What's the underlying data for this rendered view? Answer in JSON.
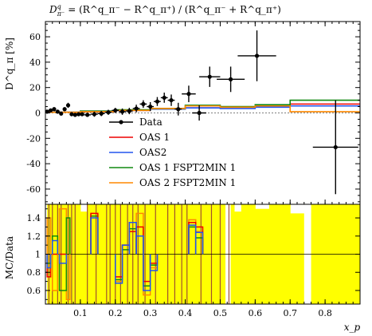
{
  "chart_data": {
    "type": "line",
    "title_html": "D<tspan font-style=\"italic\">q</tspan>",
    "title_parts": {
      "lhs": "D",
      "lhs_sup": "q",
      "lhs_sub": "π⁻",
      "rhs": "= (R^q_π⁻ − R^q_π⁺) / (R^q_π⁻ + R^q_π⁺)"
    },
    "xlabel": "x_p",
    "ylabel": "D^q_π [%]",
    "ratio_ylabel": "MC/Data",
    "xlim": [
      0.0,
      0.9
    ],
    "ylim": [
      -72,
      72
    ],
    "ratio_ylim": [
      0.45,
      1.55
    ],
    "xticks": [
      {
        "v": 0.1,
        "label": "0.1"
      },
      {
        "v": 0.2,
        "label": "0.2"
      },
      {
        "v": 0.3,
        "label": "0.3"
      },
      {
        "v": 0.4,
        "label": "0.4"
      },
      {
        "v": 0.5,
        "label": "0.5"
      },
      {
        "v": 0.6,
        "label": "0.6"
      },
      {
        "v": 0.7,
        "label": "0.7"
      },
      {
        "v": 0.8,
        "label": "0.8"
      }
    ],
    "yticks": [
      {
        "v": 60,
        "label": "60"
      },
      {
        "v": 40,
        "label": "40"
      },
      {
        "v": 20,
        "label": "20"
      },
      {
        "v": 0,
        "label": "0"
      },
      {
        "v": -20,
        "label": "-20"
      },
      {
        "v": -40,
        "label": "-40"
      },
      {
        "v": -60,
        "label": "-60"
      }
    ],
    "ratio_yticks": [
      {
        "v": 1.4,
        "label": "1.4"
      },
      {
        "v": 1.2,
        "label": "1.2"
      },
      {
        "v": 1.0,
        "label": "1"
      },
      {
        "v": 0.8,
        "label": "0.8"
      },
      {
        "v": 0.6,
        "label": "0.6"
      }
    ],
    "legend": {
      "position": "center-left",
      "entries": [
        {
          "name": "Data",
          "color": "#000000",
          "kind": "data"
        },
        {
          "name": "OAS 1",
          "color": "#ee0000",
          "kind": "line"
        },
        {
          "name": "OAS2",
          "color": "#2255ee",
          "kind": "line"
        },
        {
          "name": "OAS 1 FSPT2MIN 1",
          "color": "#118811",
          "kind": "line"
        },
        {
          "name": "OAS 2 FSPT2MIN 1",
          "color": "#ff8800",
          "kind": "line"
        }
      ]
    },
    "data_points": [
      {
        "x": 0.005,
        "y": 1.0,
        "xerr": 0.005,
        "yerr": 1.5
      },
      {
        "x": 0.015,
        "y": 2.0,
        "xerr": 0.005,
        "yerr": 1.5
      },
      {
        "x": 0.025,
        "y": 3.0,
        "xerr": 0.005,
        "yerr": 1.5
      },
      {
        "x": 0.035,
        "y": 1.0,
        "xerr": 0.005,
        "yerr": 1.5
      },
      {
        "x": 0.045,
        "y": -0.5,
        "xerr": 0.005,
        "yerr": 1.5
      },
      {
        "x": 0.055,
        "y": 3.0,
        "xerr": 0.005,
        "yerr": 1.5
      },
      {
        "x": 0.065,
        "y": 6.0,
        "xerr": 0.005,
        "yerr": 2.0
      },
      {
        "x": 0.075,
        "y": -1.0,
        "xerr": 0.005,
        "yerr": 1.5
      },
      {
        "x": 0.085,
        "y": -1.5,
        "xerr": 0.005,
        "yerr": 1.5
      },
      {
        "x": 0.095,
        "y": -1.0,
        "xerr": 0.005,
        "yerr": 1.5
      },
      {
        "x": 0.105,
        "y": -1.0,
        "xerr": 0.005,
        "yerr": 1.5
      },
      {
        "x": 0.12,
        "y": -1.5,
        "xerr": 0.01,
        "yerr": 1.5
      },
      {
        "x": 0.14,
        "y": -1.0,
        "xerr": 0.01,
        "yerr": 2.0
      },
      {
        "x": 0.16,
        "y": -0.5,
        "xerr": 0.01,
        "yerr": 2.0
      },
      {
        "x": 0.18,
        "y": 0.5,
        "xerr": 0.01,
        "yerr": 2.0
      },
      {
        "x": 0.2,
        "y": 2.0,
        "xerr": 0.01,
        "yerr": 2.0
      },
      {
        "x": 0.22,
        "y": 1.0,
        "xerr": 0.01,
        "yerr": 2.5
      },
      {
        "x": 0.24,
        "y": 1.5,
        "xerr": 0.01,
        "yerr": 2.5
      },
      {
        "x": 0.26,
        "y": 3.5,
        "xerr": 0.01,
        "yerr": 3.0
      },
      {
        "x": 0.28,
        "y": 7.0,
        "xerr": 0.01,
        "yerr": 3.0
      },
      {
        "x": 0.3,
        "y": 5.0,
        "xerr": 0.01,
        "yerr": 3.5
      },
      {
        "x": 0.32,
        "y": 9.0,
        "xerr": 0.01,
        "yerr": 3.5
      },
      {
        "x": 0.34,
        "y": 12.0,
        "xerr": 0.01,
        "yerr": 4.0
      },
      {
        "x": 0.36,
        "y": 10.0,
        "xerr": 0.01,
        "yerr": 4.5
      },
      {
        "x": 0.38,
        "y": 3.0,
        "xerr": 0.01,
        "yerr": 5.0
      },
      {
        "x": 0.41,
        "y": 15.0,
        "xerr": 0.02,
        "yerr": 6.5
      },
      {
        "x": 0.44,
        "y": 0.0,
        "xerr": 0.02,
        "yerr": 6.0
      },
      {
        "x": 0.47,
        "y": 28.5,
        "xerr": 0.03,
        "yerr": 8.0
      },
      {
        "x": 0.53,
        "y": 26.5,
        "xerr": 0.04,
        "yerr": 10.0
      },
      {
        "x": 0.605,
        "y": 45.0,
        "xerr": 0.055,
        "yerr": 20.0
      },
      {
        "x": 0.83,
        "y": -27.0,
        "xerr": 0.065,
        "yerr": 37.0
      }
    ],
    "series": [
      {
        "name": "OAS 1",
        "color": "#ee0000",
        "edges": [
          0.0,
          0.1,
          0.2,
          0.3,
          0.4,
          0.5,
          0.6,
          0.7,
          0.9
        ],
        "values": [
          0.5,
          1.0,
          2.0,
          3.0,
          4.0,
          4.5,
          5.5,
          7.0
        ]
      },
      {
        "name": "OAS2",
        "color": "#2255ee",
        "edges": [
          0.0,
          0.1,
          0.2,
          0.3,
          0.4,
          0.5,
          0.6,
          0.7,
          0.9
        ],
        "values": [
          0.5,
          1.5,
          2.0,
          3.0,
          4.0,
          3.5,
          4.5,
          5.5
        ]
      },
      {
        "name": "OAS 1 FSPT2MIN 1",
        "color": "#118811",
        "edges": [
          0.0,
          0.1,
          0.2,
          0.3,
          0.4,
          0.5,
          0.6,
          0.7,
          0.9
        ],
        "values": [
          0.5,
          1.5,
          2.5,
          3.5,
          6.0,
          5.0,
          6.5,
          10.0
        ]
      },
      {
        "name": "OAS 2 FSPT2MIN 1",
        "color": "#ff8800",
        "edges": [
          0.0,
          0.1,
          0.2,
          0.3,
          0.4,
          0.5,
          0.6,
          0.7,
          0.9
        ],
        "values": [
          0.5,
          1.0,
          2.0,
          3.5,
          5.5,
          4.5,
          5.5,
          1.0
        ]
      }
    ],
    "ratio": {
      "band_color": "#ffff00",
      "band_edges": [
        0.005,
        0.02,
        0.04,
        0.06,
        0.08,
        0.1,
        0.12,
        0.14,
        0.16,
        0.18,
        0.2,
        0.22,
        0.24,
        0.26,
        0.28,
        0.3,
        0.32,
        0.34,
        0.36,
        0.38,
        0.4,
        0.42,
        0.44,
        0.46,
        0.5,
        0.52,
        0.54,
        0.56,
        0.6,
        0.64,
        0.7,
        0.76,
        0.84,
        0.9
      ],
      "band_lo": [
        0.45,
        0.45,
        0.45,
        0.45,
        0.45,
        0.45,
        0.45,
        0.45,
        0.45,
        0.45,
        0.45,
        0.45,
        0.45,
        0.45,
        0.45,
        0.45,
        0.45,
        0.45,
        0.45,
        0.45,
        0.45,
        0.45,
        0.45,
        0.45,
        0.45,
        0.45,
        0.45,
        0.45,
        0.45,
        0.45,
        0.45,
        0.45,
        0.45
      ],
      "band_hi": [
        1.55,
        1.55,
        1.55,
        1.55,
        1.55,
        1.47,
        1.55,
        1.55,
        1.55,
        1.55,
        1.55,
        1.55,
        1.55,
        1.55,
        1.55,
        1.55,
        1.55,
        1.55,
        1.55,
        1.55,
        1.55,
        1.55,
        1.55,
        1.55,
        1.55,
        1.55,
        1.47,
        1.55,
        1.5,
        1.55,
        1.45,
        1.55,
        1.55
      ],
      "band_gaps": [
        [
          0.515,
          0.53
        ],
        [
          0.74,
          0.76
        ]
      ],
      "mc_lines": [
        {
          "color": "#ff8800",
          "segments": [
            [
              0.005,
              0.015,
              1.4
            ],
            [
              0.02,
              0.035,
              0.6
            ],
            [
              0.04,
              0.06,
              1.5
            ],
            [
              0.06,
              0.07,
              0.5
            ],
            [
              0.13,
              0.15,
              1.45
            ],
            [
              0.2,
              0.22,
              0.7
            ],
            [
              0.22,
              0.24,
              1.1
            ],
            [
              0.24,
              0.26,
              1.35
            ],
            [
              0.26,
              0.28,
              1.45
            ],
            [
              0.28,
              0.3,
              0.55
            ],
            [
              0.3,
              0.32,
              0.85
            ],
            [
              0.41,
              0.43,
              1.38
            ],
            [
              0.43,
              0.45,
              1.25
            ]
          ]
        },
        {
          "color": "#118811",
          "segments": [
            [
              0.005,
              0.015,
              0.9
            ],
            [
              0.02,
              0.035,
              1.2
            ],
            [
              0.04,
              0.06,
              0.6
            ],
            [
              0.06,
              0.07,
              1.4
            ],
            [
              0.13,
              0.15,
              1.42
            ],
            [
              0.2,
              0.22,
              0.72
            ],
            [
              0.22,
              0.24,
              1.05
            ],
            [
              0.24,
              0.26,
              1.28
            ],
            [
              0.26,
              0.28,
              1.2
            ],
            [
              0.28,
              0.3,
              0.65
            ],
            [
              0.3,
              0.32,
              0.88
            ],
            [
              0.41,
              0.43,
              1.3
            ],
            [
              0.43,
              0.45,
              1.18
            ]
          ]
        },
        {
          "color": "#ee0000",
          "segments": [
            [
              0.005,
              0.015,
              0.75
            ],
            [
              0.02,
              0.035,
              1.0
            ],
            [
              0.04,
              0.06,
              1.0
            ],
            [
              0.13,
              0.15,
              1.45
            ],
            [
              0.2,
              0.22,
              0.75
            ],
            [
              0.22,
              0.24,
              1.1
            ],
            [
              0.24,
              0.26,
              1.25
            ],
            [
              0.26,
              0.28,
              1.3
            ],
            [
              0.28,
              0.3,
              0.7
            ],
            [
              0.3,
              0.32,
              0.9
            ],
            [
              0.41,
              0.43,
              1.35
            ],
            [
              0.43,
              0.45,
              1.3
            ]
          ]
        },
        {
          "color": "#2255ee",
          "segments": [
            [
              0.005,
              0.015,
              0.85
            ],
            [
              0.02,
              0.035,
              1.15
            ],
            [
              0.04,
              0.06,
              0.9
            ],
            [
              0.13,
              0.15,
              1.4
            ],
            [
              0.2,
              0.22,
              0.68
            ],
            [
              0.22,
              0.24,
              1.1
            ],
            [
              0.24,
              0.26,
              1.35
            ],
            [
              0.26,
              0.28,
              1.2
            ],
            [
              0.28,
              0.3,
              0.6
            ],
            [
              0.3,
              0.32,
              0.82
            ],
            [
              0.41,
              0.43,
              1.32
            ],
            [
              0.43,
              0.45,
              1.24
            ]
          ]
        }
      ],
      "brown_lines": [
        0.01,
        0.02,
        0.035,
        0.045,
        0.065,
        0.075,
        0.085,
        0.12,
        0.145,
        0.175,
        0.185,
        0.2,
        0.215,
        0.235,
        0.25,
        0.265,
        0.285,
        0.315,
        0.35,
        0.37,
        0.39,
        0.405,
        0.445,
        0.475,
        0.5,
        0.525
      ]
    }
  }
}
